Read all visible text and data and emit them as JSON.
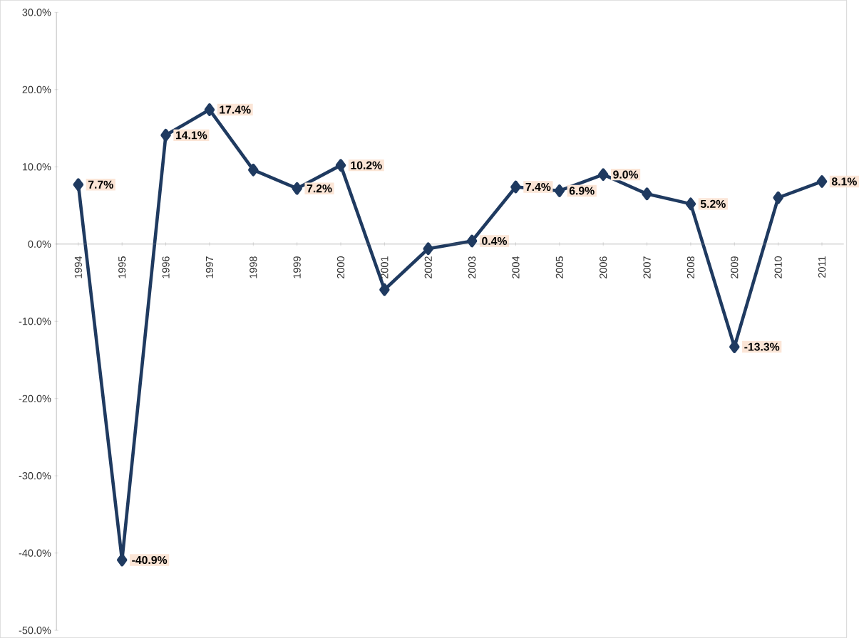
{
  "chart_data": {
    "type": "line",
    "categories": [
      "1994",
      "1995",
      "1996",
      "1997",
      "1998",
      "1999",
      "2000",
      "2001",
      "2002",
      "2003",
      "2004",
      "2005",
      "2006",
      "2007",
      "2008",
      "2009",
      "2010",
      "2011"
    ],
    "series": [
      {
        "color": "#1f3a60",
        "values": [
          7.7,
          -40.9,
          14.1,
          17.4,
          9.6,
          7.2,
          10.2,
          -5.9,
          -0.6,
          0.4,
          7.4,
          6.9,
          9.0,
          6.5,
          5.2,
          -13.3,
          6.0,
          8.1
        ],
        "value_labels": [
          "7.7%",
          "-40.9%",
          "14.1%",
          "17.4%",
          null,
          "7.2%",
          "10.2%",
          null,
          null,
          "0.4%",
          "7.4%",
          "6.9%",
          "9.0%",
          null,
          "5.2%",
          "-13.3%",
          null,
          "8.1%"
        ]
      }
    ],
    "ylim": [
      -50,
      30
    ],
    "yticks": [
      {
        "value": -50,
        "label": "-50.0%"
      },
      {
        "value": -40,
        "label": "-40.0%"
      },
      {
        "value": -30,
        "label": "-30.0%"
      },
      {
        "value": -20,
        "label": "-20.0%"
      },
      {
        "value": -10,
        "label": "-10.0%"
      },
      {
        "value": 0,
        "label": "0.0%"
      },
      {
        "value": 10,
        "label": "10.0%"
      },
      {
        "value": 20,
        "label": "20.0%"
      },
      {
        "value": 30,
        "label": "30.0%"
      }
    ],
    "grid": false,
    "marker": "diamond",
    "line_style": "solid"
  }
}
